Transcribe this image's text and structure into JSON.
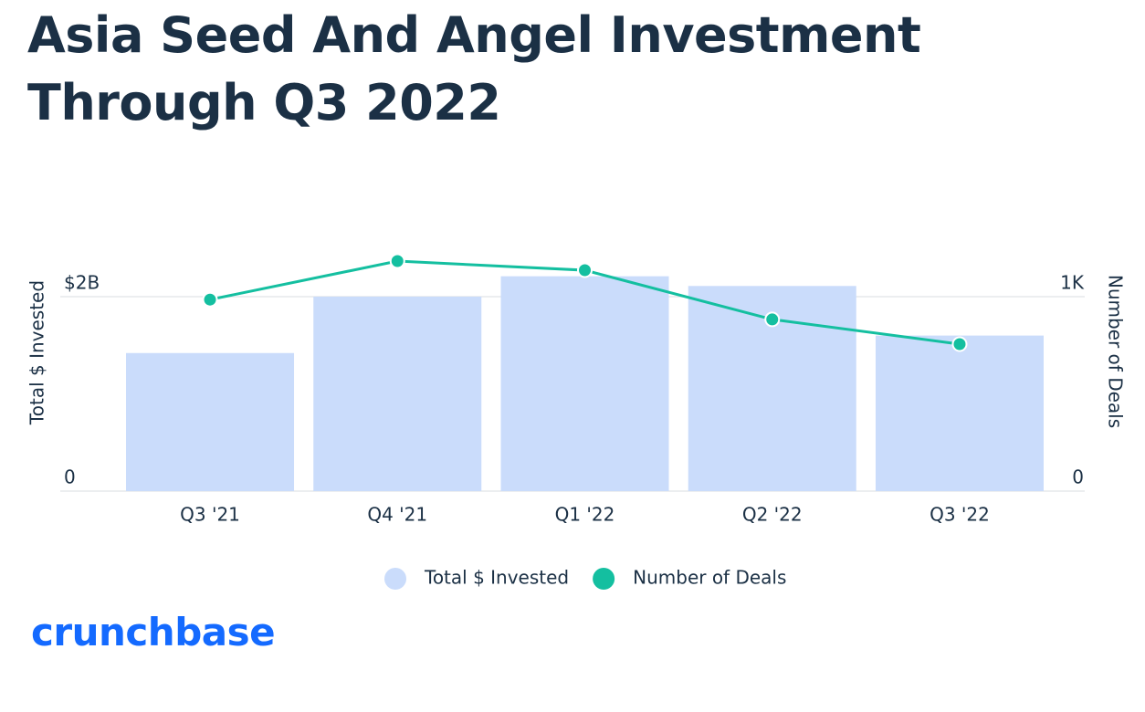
{
  "chart_data": {
    "type": "bar",
    "title": "Asia Seed And Angel Investment Through Q3 2022",
    "categories": [
      "Q3 '21",
      "Q4 '21",
      "Q1 '22",
      "Q2 '22",
      "Q3 '22"
    ],
    "series": [
      {
        "name": "Total $ Invested",
        "color": "#cadcfb",
        "values": [
          1.42,
          2.0,
          2.21,
          2.11,
          1.6
        ]
      },
      {
        "name": "Number of Deals",
        "color": "#14bfa0",
        "type": "line",
        "axis": "y2",
        "values": [
          985,
          1183,
          1136,
          883,
          756
        ]
      }
    ],
    "ylabel": "Total $ Invested",
    "y2label": "Number of Deals",
    "ylim": [
      0,
      2.5
    ],
    "yticks": [
      0,
      {
        "value": 2,
        "label": "$2B"
      }
    ],
    "y2lim": [
      0,
      1250
    ],
    "y2ticks": [
      0,
      {
        "value": 1000,
        "label": "1K"
      }
    ],
    "grid": true
  },
  "logo": "crunchbase"
}
